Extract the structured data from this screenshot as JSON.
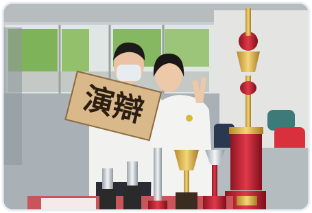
{
  "image": {
    "sign_text": "演辯"
  }
}
